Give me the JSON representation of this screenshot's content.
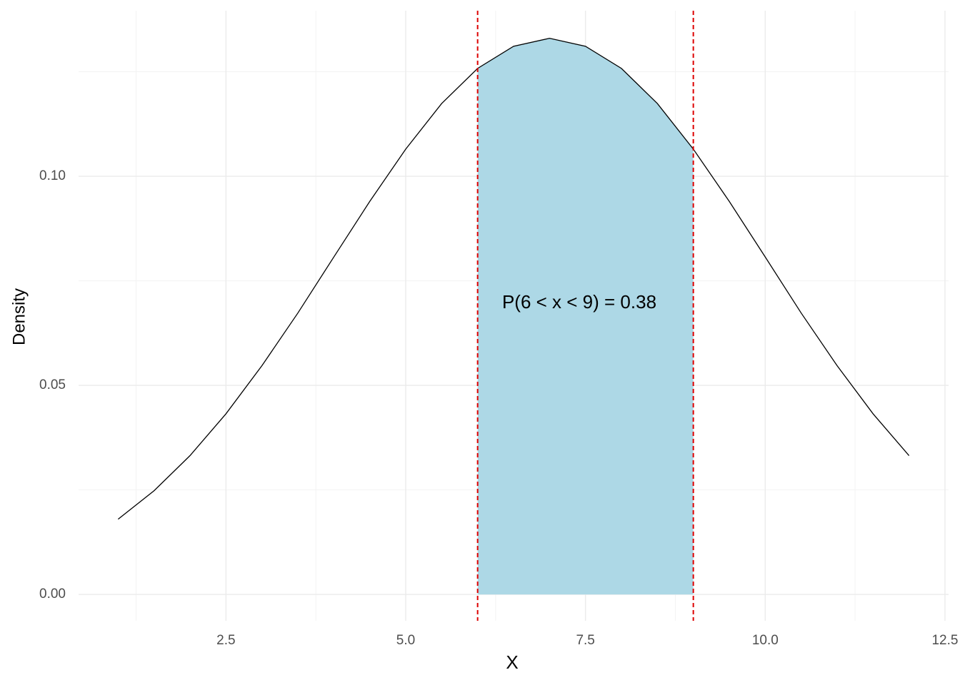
{
  "chart_data": {
    "type": "line",
    "x_label": "X",
    "y_label": "Density",
    "annotation": "P(6 < x < 9) =  0.38",
    "xlim": [
      0.45,
      12.55
    ],
    "ylim": [
      -0.0063,
      0.1396
    ],
    "xticks": [
      2.5,
      {
        "value": 5,
        "label": "5.0"
      },
      7.5,
      {
        "value": 10,
        "label": "10.0"
      },
      12.5
    ],
    "xminor": [
      1.25,
      3.75,
      6.25,
      8.75,
      11.25
    ],
    "yticks": [
      {
        "value": 0,
        "label": "0.00"
      },
      0.05,
      {
        "value": 0.1,
        "label": "0.10"
      }
    ],
    "yminor": [
      0.025,
      0.075,
      0.125
    ],
    "grid": true,
    "curve": {
      "color": "#000000",
      "x": [
        1,
        1.5,
        2,
        2.5,
        3,
        3.5,
        4,
        4.5,
        5,
        5.5,
        6,
        6.5,
        7,
        7.5,
        8,
        8.5,
        9,
        9.5,
        10,
        10.5,
        11,
        11.5,
        12
      ],
      "values": [
        0.018,
        0.0248,
        0.0332,
        0.0432,
        0.0547,
        0.0673,
        0.0807,
        0.094,
        0.1065,
        0.1174,
        0.1258,
        0.1311,
        0.133,
        0.1311,
        0.1258,
        0.1174,
        0.1065,
        0.094,
        0.0807,
        0.0673,
        0.0547,
        0.0432,
        0.0332
      ]
    },
    "shaded": {
      "color": "#add8e6",
      "x": [
        6,
        6.5,
        7,
        7.5,
        8,
        8.5,
        9
      ],
      "values": [
        0.1258,
        0.1311,
        0.133,
        0.1311,
        0.1258,
        0.1174,
        0.1065
      ]
    },
    "vlines": {
      "color": "#dd0000",
      "values": [
        6,
        9
      ]
    }
  }
}
